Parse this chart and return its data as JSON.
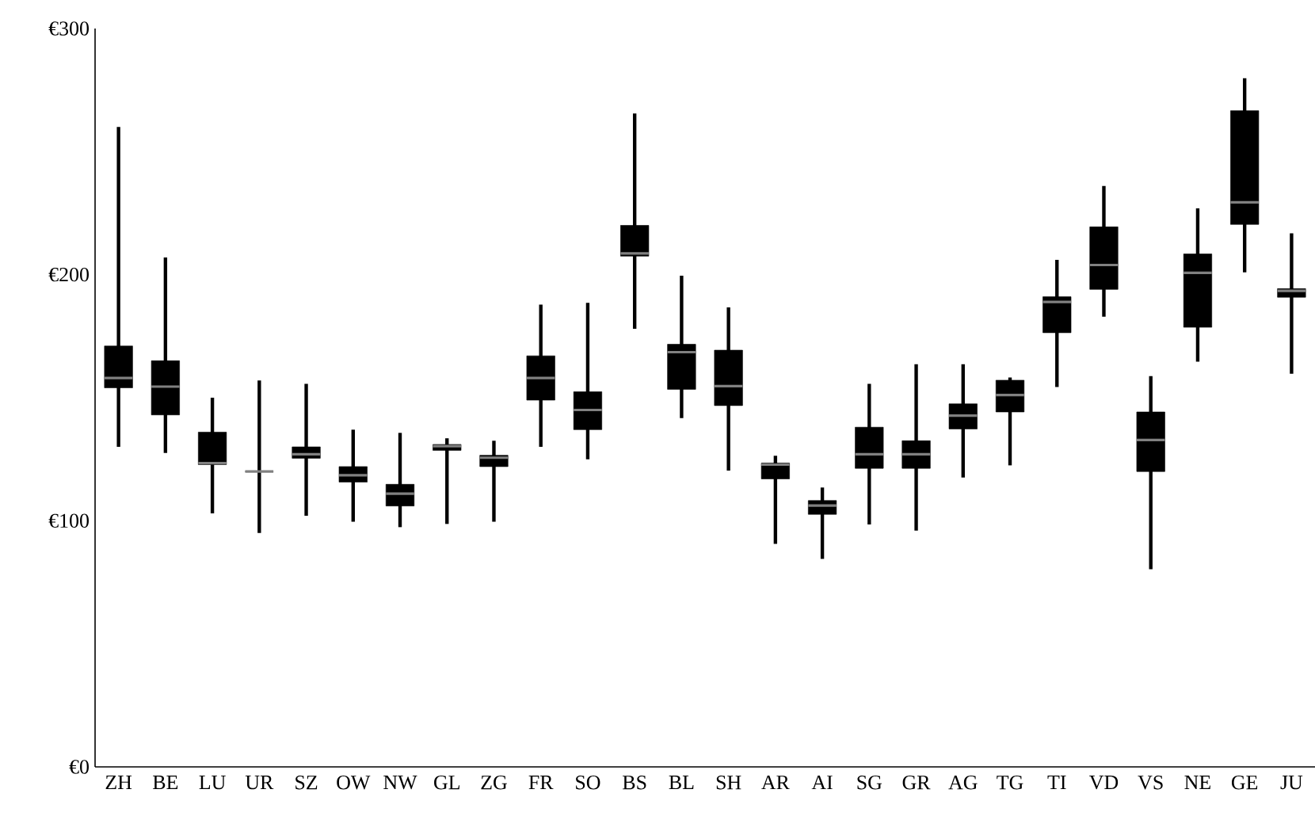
{
  "chart_data": {
    "type": "box",
    "categories": [
      "ZH",
      "BE",
      "LU",
      "UR",
      "SZ",
      "OW",
      "NW",
      "GL",
      "ZG",
      "FR",
      "SO",
      "BS",
      "BL",
      "SH",
      "AR",
      "AI",
      "SG",
      "GR",
      "AG",
      "TG",
      "TI",
      "VD",
      "VS",
      "NE",
      "GE",
      "JU"
    ],
    "ylim": [
      0,
      300
    ],
    "yticks": [
      {
        "value": 0,
        "label": "€0"
      },
      {
        "value": 100,
        "label": "€100"
      },
      {
        "value": 200,
        "label": "€200"
      },
      {
        "value": 300,
        "label": "€300"
      }
    ],
    "series": [
      {
        "color": "#000000",
        "boxes": [
          {
            "low": 130,
            "q1": 154,
            "median": 158,
            "q3": 171,
            "high": 260
          },
          {
            "low": 127.5,
            "q1": 143,
            "median": 154.5,
            "q3": 165,
            "high": 207
          },
          {
            "low": 103,
            "q1": 122.8,
            "median": 123.4,
            "q3": 136,
            "high": 150
          },
          {
            "low": 95,
            "q1": 120,
            "median": 120,
            "q3": 120,
            "high": 157
          },
          {
            "low": 102,
            "q1": 125.4,
            "median": 127,
            "q3": 130,
            "high": 155.6
          },
          {
            "low": 99.6,
            "q1": 115.7,
            "median": 118.5,
            "q3": 122,
            "high": 137
          },
          {
            "low": 97.4,
            "q1": 106,
            "median": 111,
            "q3": 114.8,
            "high": 135.7
          },
          {
            "low": 98.7,
            "q1": 128.6,
            "median": 130.3,
            "q3": 131,
            "high": 133.5
          },
          {
            "low": 99.6,
            "q1": 122,
            "median": 125.6,
            "q3": 126.6,
            "high": 132.5
          },
          {
            "low": 130,
            "q1": 149,
            "median": 158,
            "q3": 167,
            "high": 187.8
          },
          {
            "low": 125,
            "q1": 137,
            "median": 145,
            "q3": 152.4,
            "high": 188.5
          },
          {
            "low": 178,
            "q1": 207.5,
            "median": 208.6,
            "q3": 220,
            "high": 265.5
          },
          {
            "low": 141.7,
            "q1": 153.4,
            "median": 168.5,
            "q3": 171.7,
            "high": 199.6
          },
          {
            "low": 120.4,
            "q1": 146.8,
            "median": 154.7,
            "q3": 169.3,
            "high": 186.7
          },
          {
            "low": 90.6,
            "q1": 117,
            "median": 122.8,
            "q3": 123.4,
            "high": 126.4
          },
          {
            "low": 84.5,
            "q1": 102.6,
            "median": 106.2,
            "q3": 108.2,
            "high": 113.5
          },
          {
            "low": 98.5,
            "q1": 121.3,
            "median": 127,
            "q3": 138,
            "high": 155.6
          },
          {
            "low": 96,
            "q1": 121.3,
            "median": 127,
            "q3": 132.5,
            "high": 163.6
          },
          {
            "low": 117.6,
            "q1": 137.3,
            "median": 142.7,
            "q3": 147.5,
            "high": 163.6
          },
          {
            "low": 122.5,
            "q1": 144.2,
            "median": 151.1,
            "q3": 157.1,
            "high": 158.2
          },
          {
            "low": 154.3,
            "q1": 176.4,
            "median": 188.9,
            "q3": 191,
            "high": 206
          },
          {
            "low": 182.9,
            "q1": 194,
            "median": 203.9,
            "q3": 219.4,
            "high": 236
          },
          {
            "low": 80.3,
            "q1": 120,
            "median": 132.8,
            "q3": 144.2,
            "high": 158.8
          },
          {
            "low": 164.6,
            "q1": 178.6,
            "median": 200.7,
            "q3": 208.4,
            "high": 226.9
          },
          {
            "low": 200.9,
            "q1": 220.4,
            "median": 229.4,
            "q3": 266.6,
            "high": 279.8
          },
          {
            "low": 159.7,
            "q1": 190.8,
            "median": 193.4,
            "q3": 194.3,
            "high": 216.8
          }
        ]
      }
    ]
  }
}
